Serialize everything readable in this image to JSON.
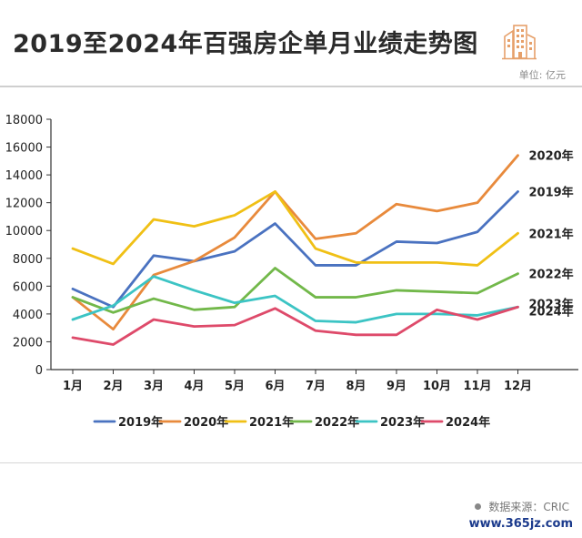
{
  "header": {
    "title": "2019至2024年百强房企单月业绩走势图",
    "unit": "单位: 亿元"
  },
  "footer": {
    "source": "数据来源：CRIC",
    "website": "www.365jz.com"
  },
  "colors": {
    "2019": "#4a72c0",
    "2020": "#e88a3c",
    "2021": "#f0c015",
    "2022": "#72b84a",
    "2023": "#3cc4c4",
    "2024": "#de4a6a"
  },
  "chart_data": {
    "type": "line",
    "categories": [
      "1月",
      "2月",
      "3月",
      "4月",
      "5月",
      "6月",
      "7月",
      "8月",
      "9月",
      "10月",
      "11月",
      "12月"
    ],
    "ylim": [
      0,
      18000
    ],
    "yticks": [
      0,
      2000,
      4000,
      6000,
      8000,
      10000,
      12000,
      14000,
      16000,
      18000
    ],
    "grid": false,
    "legend": "bottom",
    "series": [
      {
        "name": "2019年",
        "values": [
          5800,
          4500,
          8200,
          7800,
          8500,
          10500,
          7500,
          7500,
          9200,
          9100,
          9900,
          12800
        ]
      },
      {
        "name": "2020年",
        "values": [
          5200,
          2900,
          6800,
          7800,
          9500,
          12800,
          9400,
          9800,
          11900,
          11400,
          12000,
          15400
        ]
      },
      {
        "name": "2021年",
        "values": [
          8700,
          7600,
          10800,
          10300,
          11100,
          12800,
          8700,
          7700,
          7700,
          7700,
          7500,
          9800
        ]
      },
      {
        "name": "2022年",
        "values": [
          5200,
          4100,
          5100,
          4300,
          4500,
          7300,
          5200,
          5200,
          5700,
          5600,
          5500,
          6900
        ]
      },
      {
        "name": "2023年",
        "values": [
          3600,
          4600,
          6700,
          5700,
          4800,
          5300,
          3500,
          3400,
          4000,
          4000,
          3900,
          4500
        ]
      },
      {
        "name": "2024年",
        "values": [
          2300,
          1800,
          3600,
          3100,
          3200,
          4400,
          2800,
          2500,
          2500,
          4300,
          3600,
          4500
        ]
      }
    ]
  }
}
